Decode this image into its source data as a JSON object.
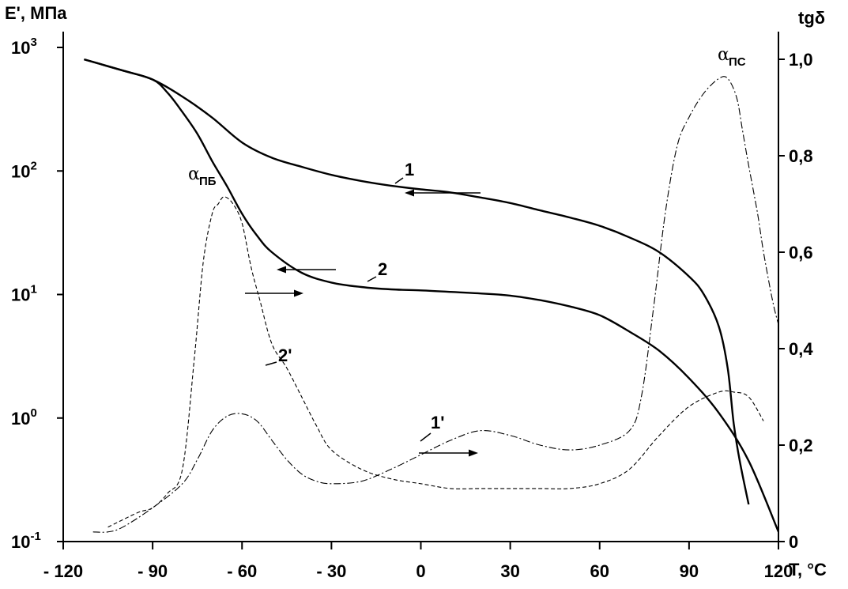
{
  "chart_data": {
    "type": "line",
    "xlabel": "T, °C",
    "ylabel_left": "E', МПа",
    "ylabel_right": "tgδ",
    "xlim": [
      -120,
      120
    ],
    "ylim_left": [
      0.1,
      1000
    ],
    "ylim_right": [
      0,
      1.0
    ],
    "left_scale": "log",
    "grid": false,
    "x_ticks": [
      "- 120",
      "- 90",
      "- 60",
      "- 30",
      "0",
      "30",
      "60",
      "90",
      "120"
    ],
    "x_tick_values": [
      -120,
      -90,
      -60,
      -30,
      0,
      30,
      60,
      90,
      120
    ],
    "y_left_ticks": [
      {
        "base": "10",
        "exp": "-1",
        "value": 0.1
      },
      {
        "base": "10",
        "exp": "0",
        "value": 1
      },
      {
        "base": "10",
        "exp": "1",
        "value": 10
      },
      {
        "base": "10",
        "exp": "2",
        "value": 100
      },
      {
        "base": "10",
        "exp": "3",
        "value": 1000
      }
    ],
    "y_right_ticks": [
      "0",
      "0,2",
      "0,4",
      "0,6",
      "0,8",
      "1,0"
    ],
    "y_right_tick_values": [
      0,
      0.2,
      0.4,
      0.6,
      0.8,
      1.0
    ],
    "series": [
      {
        "name": "1",
        "axis": "left",
        "style": "solid",
        "x": [
          -113,
          -100,
          -90,
          -80,
          -70,
          -60,
          -50,
          -40,
          -30,
          -20,
          -10,
          0,
          10,
          20,
          30,
          40,
          50,
          60,
          70,
          80,
          90,
          95,
          100,
          103,
          105,
          107,
          110
        ],
        "y": [
          800,
          650,
          550,
          400,
          270,
          170,
          128,
          108,
          93,
          83,
          76,
          71,
          67,
          61,
          55,
          48,
          42,
          36,
          29,
          22,
          14,
          10,
          5.5,
          2.5,
          0.9,
          0.45,
          0.2
        ]
      },
      {
        "name": "2",
        "axis": "left",
        "style": "solid",
        "x": [
          -113,
          -100,
          -90,
          -85,
          -80,
          -75,
          -70,
          -65,
          -60,
          -55,
          -50,
          -40,
          -30,
          -20,
          -10,
          0,
          10,
          20,
          30,
          40,
          50,
          60,
          70,
          80,
          90,
          100,
          110,
          120
        ],
        "y": [
          800,
          650,
          550,
          430,
          300,
          200,
          120,
          75,
          45,
          30,
          22,
          15,
          12.5,
          11.5,
          11,
          10.8,
          10.5,
          10.2,
          9.8,
          9,
          8,
          6.8,
          5,
          3.5,
          2.1,
          1.1,
          0.45,
          0.12
        ]
      },
      {
        "name": "1'",
        "axis": "right",
        "style": "dashdot",
        "x": [
          -110,
          -105,
          -100,
          -90,
          -80,
          -75,
          -70,
          -65,
          -60,
          -55,
          -50,
          -45,
          -40,
          -35,
          -30,
          -20,
          -10,
          0,
          10,
          20,
          30,
          40,
          50,
          60,
          70,
          74,
          78,
          82,
          86,
          90,
          95,
          100,
          103,
          106,
          108,
          110,
          113,
          115,
          118,
          120
        ],
        "y": [
          0.02,
          0.02,
          0.03,
          0.07,
          0.12,
          0.17,
          0.23,
          0.26,
          0.265,
          0.25,
          0.21,
          0.17,
          0.14,
          0.125,
          0.12,
          0.125,
          0.15,
          0.18,
          0.21,
          0.23,
          0.22,
          0.2,
          0.19,
          0.2,
          0.23,
          0.3,
          0.48,
          0.68,
          0.82,
          0.88,
          0.93,
          0.96,
          0.96,
          0.92,
          0.85,
          0.78,
          0.68,
          0.6,
          0.5,
          0.45
        ]
      },
      {
        "name": "2'",
        "axis": "right",
        "style": "dashed",
        "x": [
          -105,
          -95,
          -90,
          -85,
          -80,
          -76,
          -73,
          -70,
          -68,
          -66,
          -63,
          -60,
          -57,
          -54,
          -50,
          -45,
          -40,
          -35,
          -30,
          -20,
          -10,
          0,
          10,
          20,
          30,
          40,
          50,
          60,
          70,
          80,
          90,
          100,
          105,
          110,
          115
        ],
        "y": [
          0.03,
          0.06,
          0.07,
          0.1,
          0.15,
          0.38,
          0.58,
          0.68,
          0.7,
          0.715,
          0.7,
          0.66,
          0.57,
          0.5,
          0.41,
          0.36,
          0.3,
          0.24,
          0.19,
          0.15,
          0.13,
          0.12,
          0.11,
          0.11,
          0.11,
          0.11,
          0.11,
          0.12,
          0.15,
          0.22,
          0.28,
          0.31,
          0.31,
          0.3,
          0.25
        ]
      }
    ],
    "annotations": [
      {
        "text": "α",
        "sub": "ПБ"
      },
      {
        "text": "α",
        "sub": "ПС"
      }
    ]
  }
}
